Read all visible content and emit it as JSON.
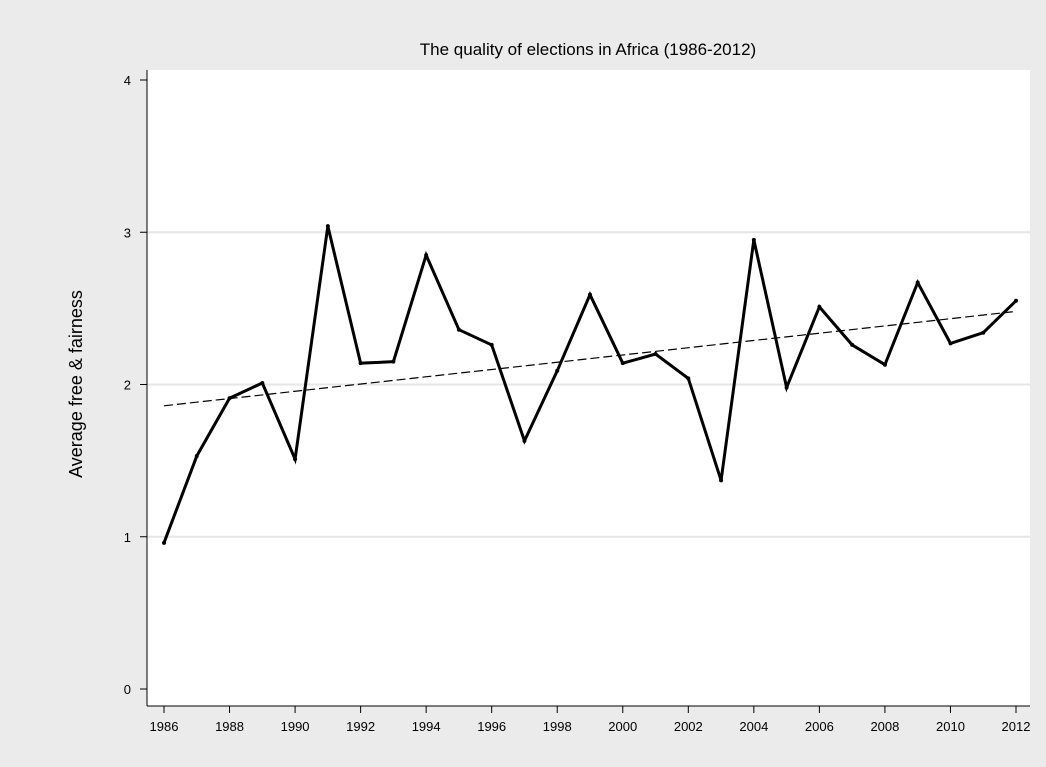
{
  "chart_data": {
    "type": "line",
    "title": "The quality of elections in Africa (1986-2012)",
    "xlabel": "",
    "ylabel": "Average free & fairness",
    "x": [
      1986,
      1987,
      1988,
      1989,
      1990,
      1991,
      1992,
      1993,
      1994,
      1995,
      1996,
      1997,
      1998,
      1999,
      2000,
      2001,
      2002,
      2003,
      2004,
      2005,
      2006,
      2007,
      2008,
      2009,
      2010,
      2011,
      2012
    ],
    "series": [
      {
        "values": [
          0.96,
          1.53,
          1.91,
          2.01,
          1.51,
          3.04,
          2.14,
          2.15,
          2.85,
          2.36,
          2.26,
          1.63,
          2.09,
          2.59,
          2.14,
          2.2,
          2.04,
          1.37,
          2.95,
          1.98,
          2.51,
          2.26,
          2.13,
          2.67,
          2.27,
          2.34,
          2.55
        ],
        "style": "solid",
        "color": "#000000"
      }
    ],
    "trend_line": {
      "style": "dashed",
      "color": "#000000",
      "x": [
        1986,
        2012
      ],
      "y": [
        1.86,
        2.48
      ]
    },
    "xlim": [
      1986,
      2012
    ],
    "ylim": [
      0,
      4
    ],
    "x_ticks": [
      "1986",
      "1988",
      "1990",
      "1992",
      "1994",
      "1996",
      "1998",
      "2000",
      "2002",
      "2004",
      "2006",
      "2008",
      "2010",
      "2012"
    ],
    "y_ticks": [
      "0",
      "1",
      "2",
      "3",
      "4"
    ],
    "grid": true,
    "background": "#ebebeb",
    "plot_background": "#ffffff",
    "grid_color": "#e6e6e6"
  }
}
